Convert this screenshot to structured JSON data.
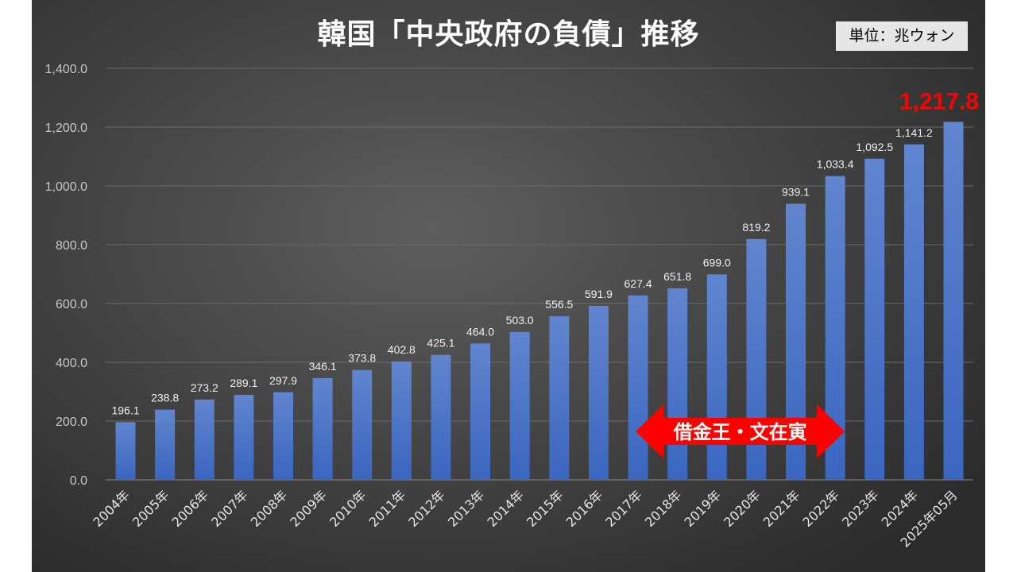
{
  "chart_data": {
    "type": "bar",
    "title": "韓国「中央政府の負債」推移",
    "unit_label": "単位：兆ウォン",
    "categories": [
      "2004年",
      "2005年",
      "2006年",
      "2007年",
      "2008年",
      "2009年",
      "2010年",
      "2011年",
      "2012年",
      "2013年",
      "2014年",
      "2015年",
      "2016年",
      "2017年",
      "2018年",
      "2019年",
      "2020年",
      "2021年",
      "2022年",
      "2023年",
      "2024年",
      "2025年05月"
    ],
    "values": [
      196.1,
      238.8,
      273.2,
      289.1,
      297.9,
      346.1,
      373.8,
      402.8,
      425.1,
      464.0,
      503.0,
      556.5,
      591.9,
      627.4,
      651.8,
      699.0,
      819.2,
      939.1,
      1033.4,
      1092.5,
      1141.2,
      1217.8
    ],
    "value_labels": [
      "196.1",
      "238.8",
      "273.2",
      "289.1",
      "297.9",
      "346.1",
      "373.8",
      "402.8",
      "425.1",
      "464.0",
      "503.0",
      "556.5",
      "591.9",
      "627.4",
      "651.8",
      "699.0",
      "819.2",
      "939.1",
      "1,033.4",
      "1,092.5",
      "1,141.2",
      "1,217.8"
    ],
    "ylim": [
      0,
      1400
    ],
    "yticks": [
      "0.0",
      "200.0",
      "400.0",
      "600.0",
      "800.0",
      "1,000.0",
      "1,200.0",
      "1,400.0"
    ],
    "grid": true,
    "xlabel": "",
    "ylabel": "",
    "annotation": {
      "text": "借金王・文在寅",
      "from": "2017年",
      "to": "2022年",
      "color": "#ff0000"
    },
    "colors": {
      "bar": "#4472c4",
      "highlight_label": "#ff0000"
    }
  }
}
